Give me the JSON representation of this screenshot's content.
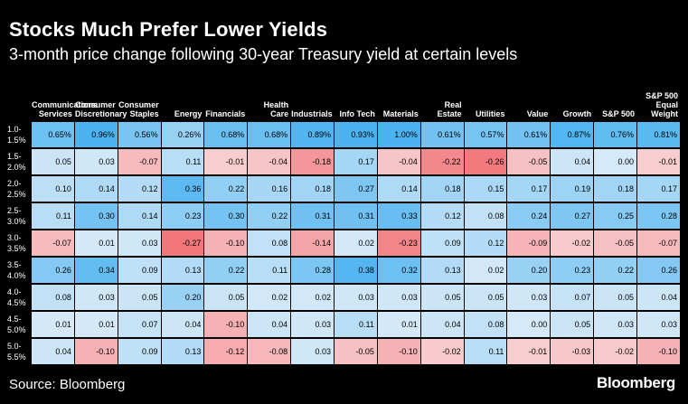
{
  "header": {
    "title": "Stocks Much Prefer Lower Yields",
    "subtitle": "3-month price change following 30-year Treasury yield at certain levels"
  },
  "footer": {
    "source": "Source: Bloomberg",
    "brand": "Bloomberg"
  },
  "colors": {
    "background": "#000000",
    "positive_strong": "#4BB3F0",
    "positive_light": "#D6E9F8",
    "negative_light": "#F8CFD2",
    "negative_strong": "#F2767B"
  },
  "chart_data": {
    "type": "heatmap",
    "title": "Stocks Much Prefer Lower Yields",
    "subtitle": "3-month price change following 30-year Treasury yield at certain levels",
    "columns": [
      "Communications Services",
      "Consumer Discretionary",
      "Consumer Staples",
      "Energy",
      "Financials",
      "Health Care",
      "Industrials",
      "Info Tech",
      "Materials",
      "Real Estate",
      "Utilities",
      "Value",
      "Growth",
      "S&P 500",
      "S&P 500 Equal Weight"
    ],
    "rows": [
      "1.0-1.5%",
      "1.5-2.0%",
      "2.0-2.5%",
      "2.5-3.0%",
      "3.0-3.5%",
      "3.5-4.0%",
      "4.0-4.5%",
      "4.5-5.0%",
      "5.0-5.5%"
    ],
    "values": [
      [
        "0.65%",
        "0.96%",
        "0.56%",
        "0.26%",
        "0.68%",
        "0.68%",
        "0.89%",
        "0.93%",
        "1.00%",
        "0.61%",
        "0.57%",
        "0.61%",
        "0.87%",
        "0.76%",
        "0.81%"
      ],
      [
        "0.05",
        "0.03",
        "-0.07",
        "0.11",
        "-0.01",
        "-0.04",
        "-0.18",
        "0.17",
        "-0.04",
        "-0.22",
        "-0.26",
        "-0.05",
        "0.04",
        "0.00",
        "-0.01"
      ],
      [
        "0.10",
        "0.14",
        "0.12",
        "0.36",
        "0.22",
        "0.16",
        "0.18",
        "0.27",
        "0.14",
        "0.18",
        "0.15",
        "0.17",
        "0.19",
        "0.18",
        "0.17"
      ],
      [
        "0.11",
        "0.30",
        "0.14",
        "0.23",
        "0.30",
        "0.22",
        "0.31",
        "0.31",
        "0.33",
        "0.12",
        "0.08",
        "0.24",
        "0.27",
        "0.25",
        "0.28"
      ],
      [
        "-0.07",
        "0.01",
        "0.03",
        "-0.27",
        "-0.10",
        "0.08",
        "-0.14",
        "0.02",
        "-0.23",
        "0.09",
        "0.12",
        "-0.09",
        "-0.02",
        "-0.05",
        "-0.07"
      ],
      [
        "0.26",
        "0.34",
        "0.09",
        "0.13",
        "0.22",
        "0.11",
        "0.28",
        "0.38",
        "0.32",
        "0.13",
        "0.02",
        "0.20",
        "0.23",
        "0.22",
        "0.26"
      ],
      [
        "0.08",
        "0.03",
        "0.05",
        "0.20",
        "0.05",
        "0.02",
        "0.02",
        "0.03",
        "0.03",
        "0.05",
        "0.05",
        "0.03",
        "0.07",
        "0.05",
        "0.04"
      ],
      [
        "0.01",
        "0.01",
        "0.07",
        "0.04",
        "-0.10",
        "0.04",
        "0.03",
        "0.11",
        "0.01",
        "0.04",
        "0.08",
        "0.00",
        "0.05",
        "0.03",
        "0.03"
      ],
      [
        "0.04",
        "-0.10",
        "0.09",
        "0.13",
        "-0.12",
        "-0.08",
        "0.03",
        "-0.05",
        "-0.10",
        "-0.02",
        "0.11",
        "-0.01",
        "-0.03",
        "-0.02",
        "-0.10"
      ]
    ],
    "xlabel": "",
    "ylabel": "",
    "legend": "none",
    "grid": false
  }
}
